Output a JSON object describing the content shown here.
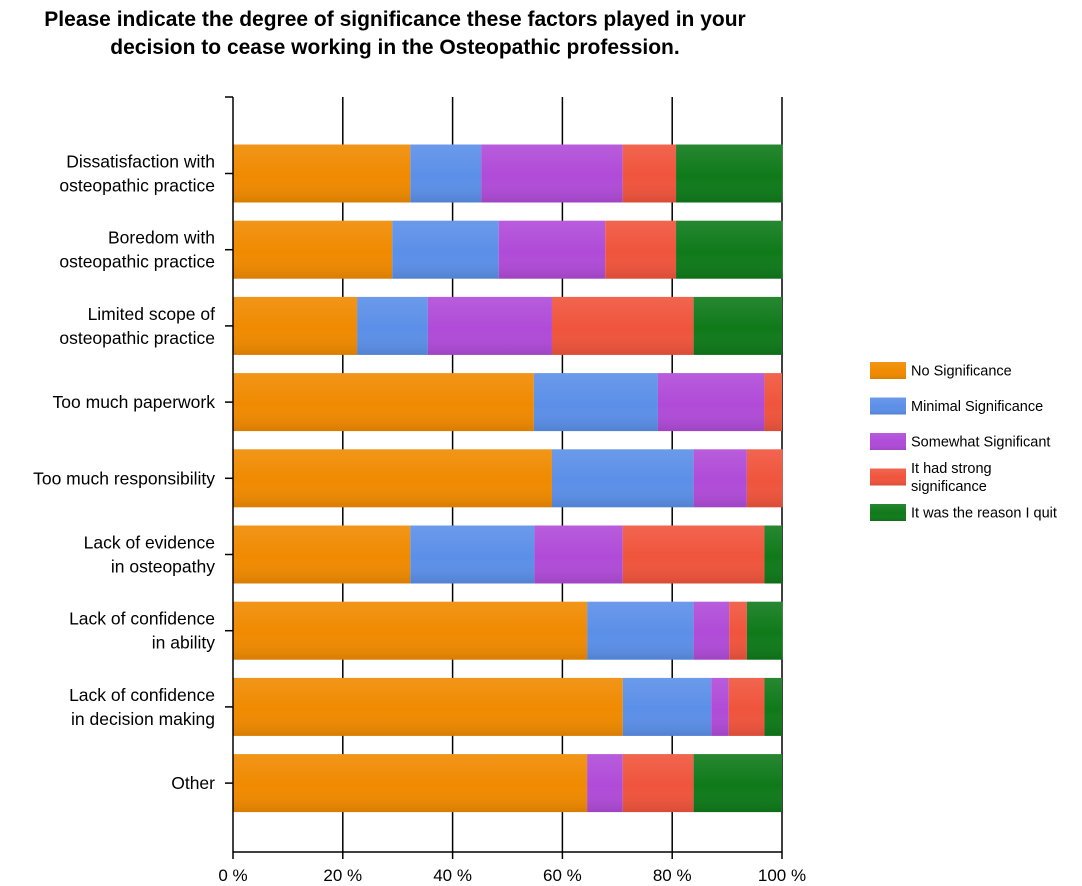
{
  "title": "Please indicate the degree of significance these factors played in your\ndecision to cease working in the Osteopathic profession.",
  "chart_data": {
    "type": "bar",
    "orientation": "horizontal",
    "stacked": true,
    "percent_stacked": true,
    "title": "Please indicate the degree of significance these factors played in your decision to cease working in the Osteopathic profession.",
    "xlabel": "",
    "ylabel": "",
    "xlim": [
      0,
      100
    ],
    "x_ticks": [
      "0 %",
      "20 %",
      "40 %",
      "60 %",
      "80 %",
      "100 %"
    ],
    "grid": true,
    "legend_position": "right",
    "categories": [
      [
        "Dissatisfaction with",
        "osteopathic practice"
      ],
      [
        "Boredom with",
        "osteopathic practice"
      ],
      [
        "Limited scope of",
        "osteopathic practice"
      ],
      [
        "Too much paperwork"
      ],
      [
        "Too much responsibility"
      ],
      [
        "Lack of evidence",
        "in osteopathy"
      ],
      [
        "Lack of confidence",
        "in ability"
      ],
      [
        "Lack of confidence",
        "in decision making"
      ],
      [
        "Other"
      ]
    ],
    "series": [
      {
        "name": "No Significance",
        "legend_lines": [
          "No Significance"
        ],
        "color": "#f08a00",
        "values": [
          32.3,
          29.0,
          22.6,
          54.8,
          58.1,
          32.3,
          64.5,
          71.0,
          64.5
        ]
      },
      {
        "name": "Minimal Significance",
        "legend_lines": [
          "Minimal Significance"
        ],
        "color": "#5b8fe8",
        "values": [
          12.9,
          19.4,
          12.9,
          22.6,
          25.8,
          22.6,
          19.4,
          16.1,
          0
        ]
      },
      {
        "name": "Somewhat Significant",
        "legend_lines": [
          "Somewhat Significant"
        ],
        "color": "#b04bd8",
        "values": [
          25.8,
          19.4,
          22.6,
          19.4,
          9.7,
          16.1,
          6.5,
          3.2,
          6.5
        ]
      },
      {
        "name": "It had strong significance",
        "legend_lines": [
          "It had strong",
          "significance"
        ],
        "color": "#f0543c",
        "values": [
          9.7,
          12.9,
          25.8,
          3.2,
          6.5,
          25.8,
          3.2,
          6.5,
          12.9
        ]
      },
      {
        "name": "It was the reason I quit",
        "legend_lines": [
          "It was the reason I quit"
        ],
        "color": "#0f7a1a",
        "values": [
          19.4,
          19.4,
          16.1,
          0,
          0,
          3.2,
          6.5,
          3.2,
          16.1
        ]
      }
    ]
  }
}
